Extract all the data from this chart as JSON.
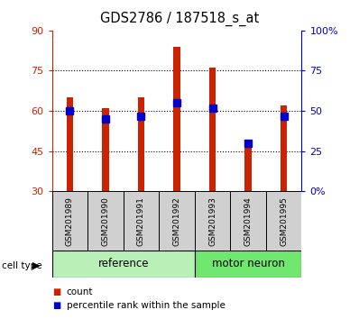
{
  "title": "GDS2786 / 187518_s_at",
  "samples": [
    "GSM201989",
    "GSM201990",
    "GSM201991",
    "GSM201992",
    "GSM201993",
    "GSM201994",
    "GSM201995"
  ],
  "red_values": [
    65,
    61,
    65,
    84,
    76,
    47,
    62
  ],
  "blue_values": [
    60,
    57,
    58,
    63,
    61,
    48,
    58
  ],
  "ylim_left": [
    30,
    90
  ],
  "ylim_right": [
    0,
    100
  ],
  "yticks_left": [
    30,
    45,
    60,
    75,
    90
  ],
  "yticks_right": [
    0,
    25,
    50,
    75,
    100
  ],
  "left_axis_color": "#cc2200",
  "right_axis_color": "#0000cc",
  "bar_color": "#cc2200",
  "dot_color": "#0000cc",
  "ref_color": "#b8f0b8",
  "neuron_color": "#70e870",
  "sample_box_color": "#d0d0d0",
  "bar_width": 0.18,
  "dot_size": 6
}
